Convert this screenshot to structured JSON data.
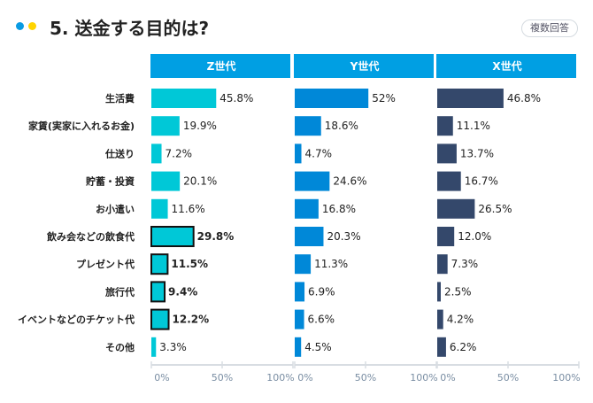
{
  "header": {
    "title": "5. 送金する目的は?",
    "badge": "複数回答",
    "dot_colors": [
      "#0a9be3",
      "#ffd400"
    ]
  },
  "chart_data": {
    "type": "bar",
    "orientation": "horizontal",
    "categories": [
      "生活費",
      "家賃(実家に入れるお金)",
      "仕送り",
      "貯蓄・投資",
      "お小遣い",
      "飲み会などの飲食代",
      "プレゼント代",
      "旅行代",
      "イベントなどのチケット代",
      "その他"
    ],
    "xlim": [
      0,
      100
    ],
    "ticks": [
      "0%",
      "50%",
      "100%"
    ],
    "header_color": "#009fe3",
    "series": [
      {
        "name": "Z世代",
        "color": "#00c8d7",
        "values": [
          45.8,
          19.9,
          7.2,
          20.1,
          11.6,
          29.8,
          11.5,
          9.4,
          12.2,
          3.3
        ],
        "labels": [
          "45.8%",
          "19.9%",
          "7.2%",
          "20.1%",
          "11.6%",
          "29.8%",
          "11.5%",
          "9.4%",
          "12.2%",
          "3.3%"
        ],
        "highlighted": [
          5,
          6,
          7,
          8
        ]
      },
      {
        "name": "Y世代",
        "color": "#0088d8",
        "values": [
          52,
          18.6,
          4.7,
          24.6,
          16.8,
          20.3,
          11.3,
          6.9,
          6.6,
          4.5
        ],
        "labels": [
          "52%",
          "18.6%",
          "4.7%",
          "24.6%",
          "16.8%",
          "20.3%",
          "11.3%",
          "6.9%",
          "6.6%",
          "4.5%"
        ],
        "highlighted": []
      },
      {
        "name": "X世代",
        "color": "#34486b",
        "values": [
          46.8,
          11.1,
          13.7,
          16.7,
          26.5,
          12.0,
          7.3,
          2.5,
          4.2,
          6.2
        ],
        "labels": [
          "46.8%",
          "11.1%",
          "13.7%",
          "16.7%",
          "26.5%",
          "12.0%",
          "7.3%",
          "2.5%",
          "4.2%",
          "6.2%"
        ],
        "highlighted": []
      }
    ]
  }
}
